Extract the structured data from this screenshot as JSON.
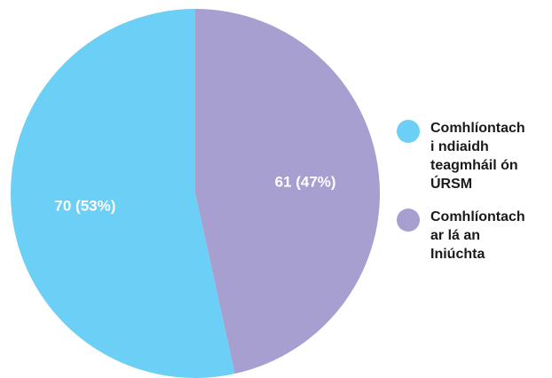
{
  "chart_data": {
    "type": "pie",
    "title": "",
    "slices": [
      {
        "label": "Comhlíontach\ni ndiaidh\nteagmháil ón\nÚRSM",
        "value": 70,
        "percent": 53,
        "data_label": "70 (53%)",
        "color": "#6ccff6"
      },
      {
        "label": "Comhlíontach\nar lá an\nIniúchta",
        "value": 61,
        "percent": 47,
        "data_label": "61 (47%)",
        "color": "#a69fd0"
      }
    ],
    "legend_position": "right"
  }
}
